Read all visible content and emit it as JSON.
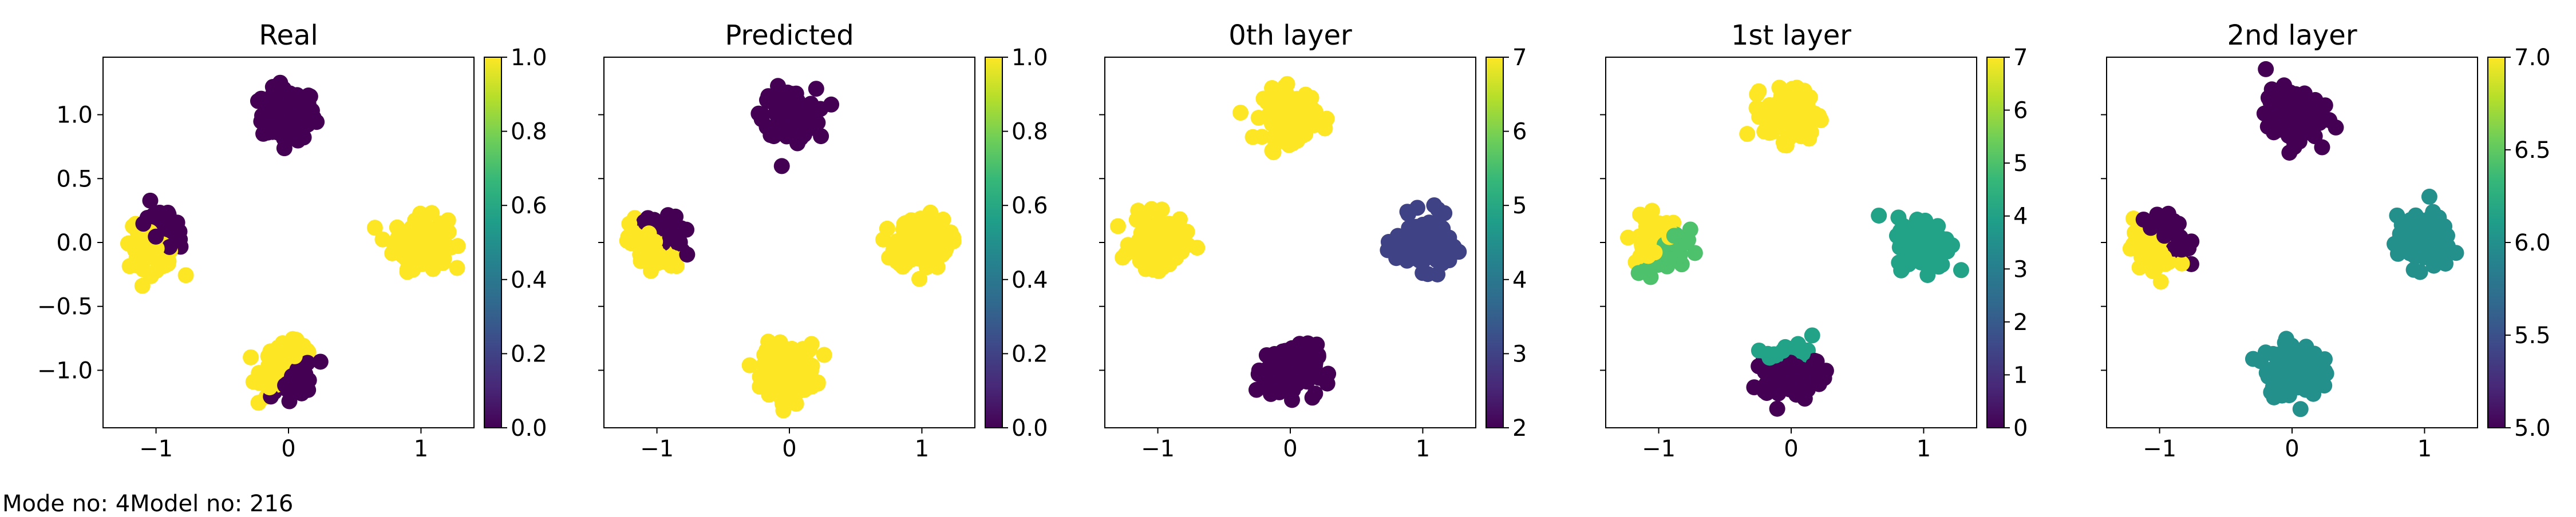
{
  "figure_note": "Mode no: 4Model no: 216",
  "colormap": "viridis",
  "colormap_stops": [
    "#440154",
    "#482878",
    "#3e4989",
    "#31688e",
    "#26828e",
    "#1f9e89",
    "#35b779",
    "#6ece58",
    "#b5de2b",
    "#fde725"
  ],
  "x_ticks": [
    "−1",
    "0",
    "1"
  ],
  "y_ticks": [
    "1.0",
    "0.5",
    "0.0",
    "−0.5",
    "−1.0"
  ],
  "chart_data": [
    {
      "type": "scatter",
      "title": "Real",
      "xlim": [
        -1.4,
        1.4
      ],
      "ylim": [
        -1.45,
        1.45
      ],
      "colorbar": {
        "range": [
          0,
          1
        ],
        "ticks": [
          "0.0",
          "0.2",
          "0.4",
          "0.6",
          "0.8",
          "1.0"
        ]
      },
      "clusters": [
        {
          "center": [
            0,
            1
          ],
          "value": 0
        },
        {
          "center": [
            1,
            0
          ],
          "value": 1
        },
        {
          "center": [
            -1,
            0
          ],
          "value": 1,
          "split": {
            "value": 0,
            "side": "upper-right"
          }
        },
        {
          "center": [
            0,
            -1
          ],
          "value": 1,
          "split": {
            "value": 0,
            "side": "lower-right"
          }
        }
      ]
    },
    {
      "type": "scatter",
      "title": "Predicted",
      "xlim": [
        -1.4,
        1.4
      ],
      "ylim": [
        -1.45,
        1.45
      ],
      "colorbar": {
        "range": [
          0,
          1
        ],
        "ticks": [
          "0.0",
          "0.2",
          "0.4",
          "0.6",
          "0.8",
          "1.0"
        ]
      },
      "clusters": [
        {
          "center": [
            0,
            1
          ],
          "value": 0
        },
        {
          "center": [
            1,
            0
          ],
          "value": 1
        },
        {
          "center": [
            -1,
            0
          ],
          "value": 1,
          "split": {
            "value": 0,
            "side": "upper-right"
          }
        },
        {
          "center": [
            0,
            -1
          ],
          "value": 1
        }
      ]
    },
    {
      "type": "scatter",
      "title": "0th layer",
      "xlim": [
        -1.4,
        1.4
      ],
      "ylim": [
        -1.45,
        1.45
      ],
      "colorbar": {
        "range": [
          2,
          7
        ],
        "ticks": [
          "2",
          "3",
          "4",
          "5",
          "6",
          "7"
        ]
      },
      "clusters": [
        {
          "center": [
            0,
            1
          ],
          "value": 7
        },
        {
          "center": [
            1,
            0
          ],
          "value": 3
        },
        {
          "center": [
            -1,
            0
          ],
          "value": 7
        },
        {
          "center": [
            0,
            -1
          ],
          "value": 2
        }
      ]
    },
    {
      "type": "scatter",
      "title": "1st layer",
      "xlim": [
        -1.4,
        1.4
      ],
      "ylim": [
        -1.45,
        1.45
      ],
      "colorbar": {
        "range": [
          0,
          7
        ],
        "ticks": [
          "0",
          "1",
          "2",
          "3",
          "4",
          "5",
          "6",
          "7"
        ]
      },
      "clusters": [
        {
          "center": [
            0,
            1
          ],
          "value": 7
        },
        {
          "center": [
            1,
            0
          ],
          "value": 4
        },
        {
          "center": [
            -1,
            0
          ],
          "value": 7,
          "split": {
            "value": 5,
            "side": "lower-right"
          }
        },
        {
          "center": [
            0,
            -1
          ],
          "value": 0,
          "split": {
            "value": 4,
            "side": "upper"
          }
        }
      ]
    },
    {
      "type": "scatter",
      "title": "2nd layer",
      "xlim": [
        -1.4,
        1.4
      ],
      "ylim": [
        -1.45,
        1.45
      ],
      "colorbar": {
        "range": [
          5,
          7
        ],
        "ticks": [
          "5.0",
          "5.5",
          "6.0",
          "6.5",
          "7.0"
        ]
      },
      "clusters": [
        {
          "center": [
            0,
            1
          ],
          "value": 5
        },
        {
          "center": [
            1,
            0
          ],
          "value": 6
        },
        {
          "center": [
            -1,
            0
          ],
          "value": 7,
          "split": {
            "value": 5,
            "side": "upper-right"
          }
        },
        {
          "center": [
            0,
            -1
          ],
          "value": 6
        }
      ]
    }
  ]
}
